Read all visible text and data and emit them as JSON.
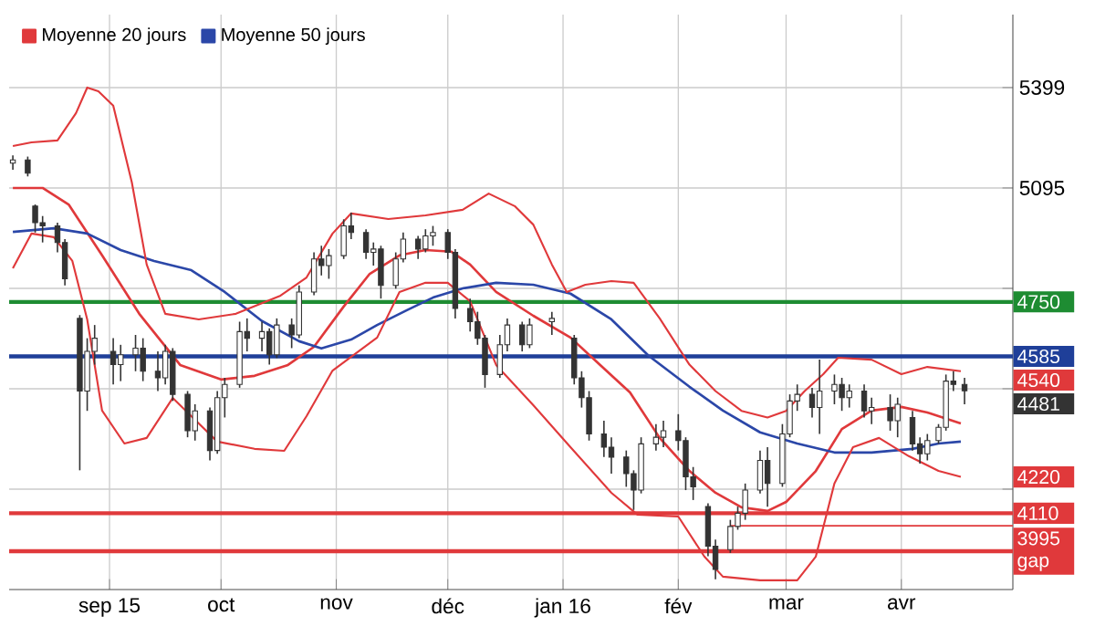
{
  "chart_data": {
    "type": "candlestick",
    "color": "#333333",
    "x": [
      "2015-08-06",
      "2015-08-10",
      "2015-08-12",
      "2015-08-14",
      "2015-08-18",
      "2015-08-20",
      "2015-08-24",
      "2015-08-26",
      "2015-08-28",
      "2015-09-02",
      "2015-09-04",
      "2015-09-08",
      "2015-09-10",
      "2015-09-14",
      "2015-09-16",
      "2015-09-18",
      "2015-09-22",
      "2015-09-24",
      "2015-09-28",
      "2015-09-30",
      "2015-10-02",
      "2015-10-06",
      "2015-10-08",
      "2015-10-12",
      "2015-10-14",
      "2015-10-16",
      "2015-10-20",
      "2015-10-22",
      "2015-10-26",
      "2015-10-28",
      "2015-10-30",
      "2015-11-03",
      "2015-11-05",
      "2015-11-09",
      "2015-11-11",
      "2015-11-13",
      "2015-11-17",
      "2015-11-19",
      "2015-11-23",
      "2015-11-25",
      "2015-11-27",
      "2015-12-01",
      "2015-12-03",
      "2015-12-07",
      "2015-12-09",
      "2015-12-11",
      "2015-12-15",
      "2015-12-17",
      "2015-12-21",
      "2015-12-23",
      "2015-12-29",
      "2016-01-04",
      "2016-01-06",
      "2016-01-08",
      "2016-01-12",
      "2016-01-14",
      "2016-01-18",
      "2016-01-20",
      "2016-01-22",
      "2016-01-26",
      "2016-01-28",
      "2016-02-01",
      "2016-02-03",
      "2016-02-05",
      "2016-02-09",
      "2016-02-11",
      "2016-02-15",
      "2016-02-17",
      "2016-02-19",
      "2016-02-23",
      "2016-02-25",
      "2016-02-29",
      "2016-03-02",
      "2016-03-04",
      "2016-03-08",
      "2016-03-10",
      "2016-03-14",
      "2016-03-16",
      "2016-03-18",
      "2016-03-22",
      "2016-03-24",
      "2016-03-29",
      "2016-03-31",
      "2016-04-04",
      "2016-04-06",
      "2016-04-08",
      "2016-04-11",
      "2016-04-13",
      "2016-04-15",
      "2016-04-18"
    ],
    "ohlc": [
      [
        5170,
        5194,
        5150,
        5180
      ],
      [
        5180,
        5190,
        5130,
        5140
      ],
      [
        5040,
        5045,
        4960,
        4990
      ],
      [
        4990,
        5010,
        4930,
        4980
      ],
      [
        4980,
        4990,
        4900,
        4930
      ],
      [
        4930,
        4940,
        4800,
        4820
      ],
      [
        4700,
        4710,
        4240,
        4480
      ],
      [
        4480,
        4640,
        4420,
        4600
      ],
      [
        4600,
        4680,
        4560,
        4640
      ],
      [
        4600,
        4640,
        4500,
        4560
      ],
      [
        4560,
        4620,
        4510,
        4590
      ],
      [
        4590,
        4650,
        4540,
        4610
      ],
      [
        4610,
        4640,
        4510,
        4540
      ],
      [
        4540,
        4600,
        4480,
        4520
      ],
      [
        4520,
        4620,
        4500,
        4600
      ],
      [
        4600,
        4610,
        4450,
        4470
      ],
      [
        4470,
        4480,
        4340,
        4360
      ],
      [
        4360,
        4440,
        4330,
        4420
      ],
      [
        4420,
        4430,
        4270,
        4300
      ],
      [
        4300,
        4480,
        4290,
        4460
      ],
      [
        4460,
        4520,
        4400,
        4500
      ],
      [
        4500,
        4690,
        4490,
        4660
      ],
      [
        4660,
        4700,
        4600,
        4640
      ],
      [
        4640,
        4690,
        4600,
        4660
      ],
      [
        4660,
        4670,
        4560,
        4590
      ],
      [
        4590,
        4700,
        4580,
        4680
      ],
      [
        4680,
        4700,
        4610,
        4650
      ],
      [
        4650,
        4800,
        4640,
        4780
      ],
      [
        4780,
        4900,
        4770,
        4880
      ],
      [
        4880,
        4920,
        4830,
        4860
      ],
      [
        4860,
        4910,
        4820,
        4890
      ],
      [
        4890,
        5000,
        4880,
        4980
      ],
      [
        4980,
        5020,
        4940,
        4960
      ],
      [
        4960,
        4970,
        4880,
        4900
      ],
      [
        4900,
        4930,
        4860,
        4910
      ],
      [
        4910,
        4920,
        4760,
        4800
      ],
      [
        4800,
        4900,
        4790,
        4880
      ],
      [
        4880,
        4960,
        4870,
        4940
      ],
      [
        4940,
        4950,
        4880,
        4910
      ],
      [
        4910,
        4970,
        4900,
        4950
      ],
      [
        4950,
        4980,
        4920,
        4960
      ],
      [
        4960,
        4970,
        4880,
        4900
      ],
      [
        4900,
        4910,
        4700,
        4730
      ],
      [
        4730,
        4760,
        4660,
        4690
      ],
      [
        4690,
        4720,
        4620,
        4640
      ],
      [
        4640,
        4650,
        4490,
        4530
      ],
      [
        4530,
        4650,
        4520,
        4620
      ],
      [
        4620,
        4700,
        4600,
        4680
      ],
      [
        4680,
        4690,
        4600,
        4620
      ],
      [
        4620,
        4700,
        4610,
        4680
      ],
      [
        4690,
        4720,
        4650,
        4700
      ],
      [
        4640,
        4650,
        4500,
        4520
      ],
      [
        4520,
        4540,
        4430,
        4460
      ],
      [
        4460,
        4480,
        4330,
        4350
      ],
      [
        4350,
        4390,
        4280,
        4310
      ],
      [
        4310,
        4340,
        4230,
        4280
      ],
      [
        4280,
        4300,
        4190,
        4230
      ],
      [
        4230,
        4240,
        4120,
        4180
      ],
      [
        4180,
        4340,
        4170,
        4320
      ],
      [
        4320,
        4380,
        4300,
        4340
      ],
      [
        4340,
        4390,
        4310,
        4360
      ],
      [
        4360,
        4410,
        4300,
        4330
      ],
      [
        4330,
        4340,
        4180,
        4220
      ],
      [
        4220,
        4250,
        4150,
        4190
      ],
      [
        4130,
        4140,
        3980,
        4010
      ],
      [
        4010,
        4030,
        3910,
        3940
      ],
      [
        4000,
        4090,
        3990,
        4070
      ],
      [
        4070,
        4130,
        4060,
        4110
      ],
      [
        4110,
        4200,
        4090,
        4180
      ],
      [
        4180,
        4300,
        4170,
        4270
      ],
      [
        4270,
        4310,
        4130,
        4200
      ],
      [
        4200,
        4380,
        4190,
        4350
      ],
      [
        4350,
        4470,
        4340,
        4450
      ],
      [
        4450,
        4500,
        4420,
        4470
      ],
      [
        4470,
        4490,
        4400,
        4430
      ],
      [
        4430,
        4575,
        4350,
        4480
      ],
      [
        4480,
        4530,
        4440,
        4500
      ],
      [
        4500,
        4520,
        4420,
        4460
      ],
      [
        4460,
        4500,
        4430,
        4480
      ],
      [
        4480,
        4500,
        4400,
        4420
      ],
      [
        4420,
        4460,
        4380,
        4430
      ],
      [
        4430,
        4470,
        4360,
        4390
      ],
      [
        4390,
        4460,
        4340,
        4440
      ],
      [
        4400,
        4420,
        4300,
        4320
      ],
      [
        4320,
        4340,
        4260,
        4290
      ],
      [
        4290,
        4350,
        4270,
        4330
      ],
      [
        4330,
        4380,
        4320,
        4370
      ],
      [
        4370,
        4530,
        4360,
        4510
      ],
      [
        4510,
        4540,
        4480,
        4500
      ],
      [
        4500,
        4520,
        4440,
        4481
      ]
    ],
    "series": [
      {
        "name": "Moyenne 20 jours",
        "type": "line",
        "color": "#e0393b",
        "x": [
          "2015-08-06",
          "2015-08-14",
          "2015-08-21",
          "2015-08-30",
          "2015-09-09",
          "2015-09-20",
          "2015-10-01",
          "2015-10-10",
          "2015-10-19",
          "2015-10-26",
          "2015-11-03",
          "2015-11-10",
          "2015-11-18",
          "2015-11-25",
          "2015-12-02",
          "2015-12-07",
          "2015-12-14",
          "2015-12-24",
          "2016-01-03",
          "2016-01-11",
          "2016-01-19",
          "2016-01-27",
          "2016-02-04",
          "2016-02-11",
          "2016-02-18",
          "2016-02-25",
          "2016-03-01",
          "2016-03-09",
          "2016-03-16",
          "2016-03-24",
          "2016-04-01",
          "2016-04-08",
          "2016-04-17"
        ],
        "values": [
          5095,
          5095,
          5045,
          4891,
          4714,
          4559,
          4515,
          4526,
          4559,
          4614,
          4736,
          4835,
          4891,
          4907,
          4902,
          4863,
          4780,
          4708,
          4642,
          4559,
          4476,
          4338,
          4238,
          4172,
          4128,
          4117,
          4144,
          4238,
          4365,
          4421,
          4432,
          4415,
          4382
        ]
      },
      {
        "name": "Moyenne 50 jours",
        "type": "line",
        "color": "#2b47a8",
        "x": [
          "2015-08-06",
          "2015-08-17",
          "2015-08-26",
          "2015-09-04",
          "2015-09-13",
          "2015-09-23",
          "2015-10-02",
          "2015-10-12",
          "2015-10-22",
          "2015-10-28",
          "2015-11-05",
          "2015-11-12",
          "2015-11-20",
          "2015-11-27",
          "2015-12-05",
          "2015-12-14",
          "2015-12-24",
          "2016-01-03",
          "2016-01-14",
          "2016-01-24",
          "2016-02-04",
          "2016-02-13",
          "2016-02-23",
          "2016-03-04",
          "2016-03-14",
          "2016-03-24",
          "2016-04-04",
          "2016-04-11",
          "2016-04-17"
        ],
        "values": [
          4962,
          4973,
          4957,
          4907,
          4874,
          4846,
          4780,
          4692,
          4631,
          4609,
          4636,
          4680,
          4725,
          4763,
          4791,
          4808,
          4802,
          4775,
          4697,
          4587,
          4493,
          4421,
          4355,
          4321,
          4294,
          4294,
          4305,
          4321,
          4327
        ]
      },
      {
        "type": "line",
        "color": "#e0393b",
        "x": [
          "2015-08-06",
          "2015-08-11",
          "2015-08-18",
          "2015-08-23",
          "2015-08-26",
          "2015-08-29",
          "2015-09-02",
          "2015-09-07",
          "2015-09-11",
          "2015-09-16",
          "2015-09-25",
          "2015-10-05",
          "2015-10-17",
          "2015-10-24",
          "2015-10-31",
          "2015-11-05",
          "2015-11-15",
          "2015-11-25",
          "2015-12-05",
          "2015-12-12",
          "2015-12-19",
          "2015-12-24",
          "2015-12-29",
          "2016-01-02",
          "2016-01-07",
          "2016-01-14",
          "2016-01-20",
          "2016-01-27",
          "2016-02-04",
          "2016-02-11",
          "2016-02-18",
          "2016-02-25",
          "2016-03-01",
          "2016-03-06",
          "2016-03-11",
          "2016-03-15",
          "2016-03-24",
          "2016-04-01",
          "2016-04-08",
          "2016-04-17"
        ],
        "values": [
          5222,
          5233,
          5239,
          5322,
          5399,
          5388,
          5344,
          5112,
          4863,
          4714,
          4697,
          4714,
          4769,
          4824,
          4957,
          5018,
          5001,
          5012,
          5029,
          5078,
          5040,
          4984,
          4863,
          4780,
          4802,
          4813,
          4808,
          4700,
          4560,
          4480,
          4420,
          4400,
          4420,
          4480,
          4531,
          4581,
          4575,
          4531,
          4553,
          4540
        ]
      },
      {
        "type": "line",
        "color": "#e0393b",
        "x": [
          "2015-08-06",
          "2015-08-11",
          "2015-08-17",
          "2015-08-22",
          "2015-08-26",
          "2015-08-30",
          "2015-09-05",
          "2015-09-11",
          "2015-09-18",
          "2015-09-23",
          "2015-09-30",
          "2015-10-10",
          "2015-10-18",
          "2015-10-24",
          "2015-10-31",
          "2015-11-12",
          "2015-11-18",
          "2015-11-25",
          "2015-12-01",
          "2015-12-07",
          "2015-12-14",
          "2015-12-24",
          "2016-01-03",
          "2016-01-14",
          "2016-01-21",
          "2016-02-01",
          "2016-02-08",
          "2016-02-13",
          "2016-02-23",
          "2016-03-04",
          "2016-03-09",
          "2016-03-14",
          "2016-03-19",
          "2016-03-26",
          "2016-04-03",
          "2016-04-11",
          "2016-04-17"
        ],
        "values": [
          4852,
          4957,
          4946,
          4874,
          4697,
          4421,
          4321,
          4338,
          4459,
          4404,
          4327,
          4305,
          4299,
          4404,
          4542,
          4642,
          4780,
          4808,
          4808,
          4752,
          4559,
          4437,
          4310,
          4172,
          4106,
          4100,
          3979,
          3918,
          3907,
          3907,
          3979,
          4200,
          4310,
          4338,
          4283,
          4238,
          4220
        ]
      },
      {
        "type": "line",
        "color": "#e0393b",
        "x": [
          "2016-02-15",
          "2016-05-01"
        ],
        "values": [
          4072,
          4072
        ]
      }
    ],
    "xlim": [
      "2015-08-05",
      "2016-05-01"
    ],
    "xticks": [
      {
        "value": "2015-09-01",
        "label": "sep 15"
      },
      {
        "value": "2015-10-01",
        "label": "oct"
      },
      {
        "value": "2015-11-01",
        "label": "nov"
      },
      {
        "value": "2015-12-01",
        "label": "déc"
      },
      {
        "value": "2016-01-01",
        "label": "jan 16"
      },
      {
        "value": "2016-02-01",
        "label": "fév"
      },
      {
        "value": "2016-03-01",
        "label": "mar"
      },
      {
        "value": "2016-04-01",
        "label": "avr"
      }
    ],
    "ylim": [
      3879,
      5620
    ],
    "yticks": [
      {
        "value": 4183,
        "label": null
      },
      {
        "value": 4487,
        "label": null
      },
      {
        "value": 4791,
        "label": null
      },
      5095,
      5399
    ],
    "ref_lines": [
      {
        "axis": "y",
        "value": 4750,
        "label": "4750",
        "color": "#1e8c32"
      },
      {
        "axis": "y",
        "value": 4585,
        "label": "4585",
        "color": "#1f3f99"
      },
      {
        "axis": "y",
        "value": 4110,
        "label": "4110",
        "color": "#e0393b"
      },
      {
        "axis": "y",
        "value": 3995,
        "label": "3995 gap",
        "color": "#e0393b"
      }
    ],
    "annotations": [
      {
        "text": "4540",
        "x": "2016-04-17",
        "y": 4540
      },
      {
        "text": "4481",
        "x": "2016-04-18",
        "y": 4481
      },
      {
        "text": "4220",
        "x": "2016-04-17",
        "y": 4220
      }
    ],
    "grid": true,
    "legend": "top left"
  }
}
